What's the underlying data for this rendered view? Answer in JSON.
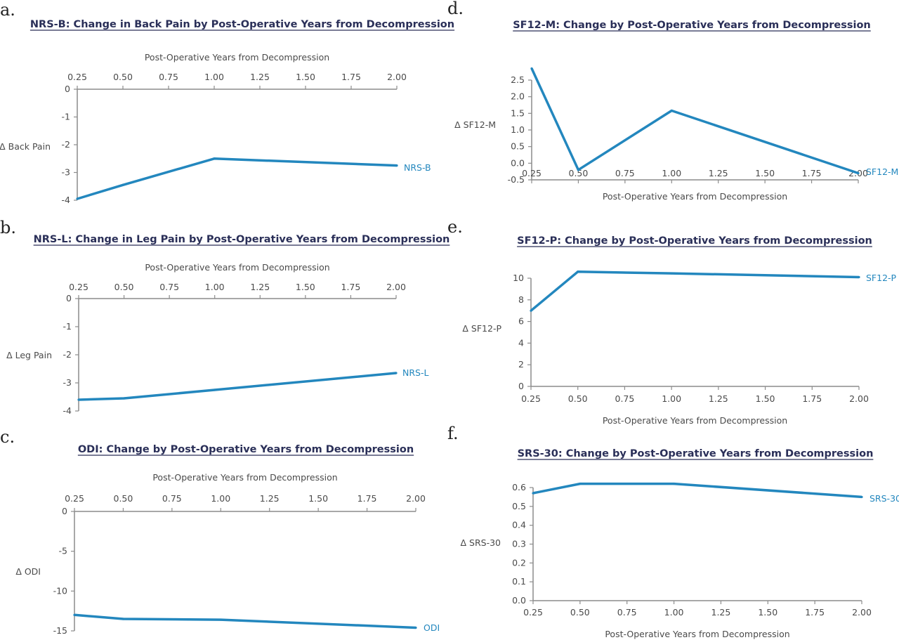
{
  "colors": {
    "series": "#2387be",
    "axis": "#8c8c8c",
    "title": "#2a2f58"
  },
  "chart_data": [
    {
      "panel": "a.",
      "type": "line",
      "title": "NRS-B: Change in Back Pain by Post-Operative Years from Decompression",
      "xlabel": "Post-Operative Years from Decompression",
      "ylabel": "Δ Back Pain",
      "x_axis_position": "top",
      "xticks": [
        "0.25",
        "0.50",
        "0.75",
        "1.00",
        "1.25",
        "1.50",
        "1.75",
        "2.00"
      ],
      "yticks": [
        "0",
        "-1",
        "-2",
        "-3",
        "-4"
      ],
      "xlim": [
        0.25,
        2.0
      ],
      "ylim": [
        -4,
        0
      ],
      "series": [
        {
          "name": "NRS-B",
          "x": [
            0.25,
            0.5,
            1.0,
            2.0
          ],
          "y": [
            -3.95,
            -3.45,
            -2.5,
            -2.75
          ]
        }
      ]
    },
    {
      "panel": "b.",
      "type": "line",
      "title": "NRS-L: Change in Leg Pain by Post-Operative Years from Decompression",
      "xlabel": "Post-Operative Years from Decompression",
      "ylabel": "Δ Leg Pain",
      "x_axis_position": "top",
      "xticks": [
        "0.25",
        "0.50",
        "0.75",
        "1.00",
        "1.25",
        "1.50",
        "1.75",
        "2.00"
      ],
      "yticks": [
        "0",
        "-1",
        "-2",
        "-3",
        "-4"
      ],
      "xlim": [
        0.25,
        2.0
      ],
      "ylim": [
        -4,
        0
      ],
      "series": [
        {
          "name": "NRS-L",
          "x": [
            0.25,
            0.5,
            1.0,
            2.0
          ],
          "y": [
            -3.6,
            -3.55,
            -3.25,
            -2.65
          ]
        }
      ]
    },
    {
      "panel": "c.",
      "type": "line",
      "title": "ODI: Change by Post-Operative Years from Decompression",
      "xlabel": "Post-Operative Years from Decompression",
      "ylabel": "Δ ODI",
      "x_axis_position": "top",
      "xticks": [
        "0.25",
        "0.50",
        "0.75",
        "1.00",
        "1.25",
        "1.50",
        "1.75",
        "2.00"
      ],
      "yticks": [
        "0",
        "-5",
        "-10",
        "-15"
      ],
      "xlim": [
        0.25,
        2.0
      ],
      "ylim": [
        -15,
        0
      ],
      "series": [
        {
          "name": "ODI",
          "x": [
            0.25,
            0.5,
            1.0,
            2.0
          ],
          "y": [
            -13.0,
            -13.5,
            -13.6,
            -14.6
          ]
        }
      ]
    },
    {
      "panel": "d.",
      "type": "line",
      "title": "SF12-M: Change by Post-Operative Years from Decompression",
      "xlabel": "Post-Operative Years from Decompression",
      "ylabel": "Δ SF12-M",
      "x_axis_position": "bottom",
      "xticks": [
        "0.25",
        "0.50",
        "0.75",
        "1.00",
        "1.25",
        "1.50",
        "1.75",
        "2.00"
      ],
      "yticks": [
        "2.5",
        "2.0",
        "1.5",
        "1.0",
        "0.5",
        "0.0",
        "-0.5"
      ],
      "xlim": [
        0.25,
        2.0
      ],
      "ylim": [
        -0.5,
        2.5
      ],
      "series": [
        {
          "name": "SF12-M",
          "x": [
            0.25,
            0.5,
            1.0,
            2.0
          ],
          "y": [
            2.85,
            -0.2,
            1.58,
            -0.3
          ]
        }
      ]
    },
    {
      "panel": "e.",
      "type": "line",
      "title": "SF12-P: Change by Post-Operative Years from Decompression",
      "xlabel": "Post-Operative Years from Decompression",
      "ylabel": "Δ SF12-P",
      "x_axis_position": "bottom",
      "xticks": [
        "0.25",
        "0.50",
        "0.75",
        "1.00",
        "1.25",
        "1.50",
        "1.75",
        "2.00"
      ],
      "yticks": [
        "10",
        "8",
        "6",
        "4",
        "2",
        "0"
      ],
      "xlim": [
        0.25,
        2.0
      ],
      "ylim": [
        0,
        10
      ],
      "series": [
        {
          "name": "SF12-P",
          "x": [
            0.25,
            0.5,
            1.0,
            2.0
          ],
          "y": [
            7.0,
            10.6,
            10.45,
            10.1
          ]
        }
      ]
    },
    {
      "panel": "f.",
      "type": "line",
      "title": "SRS-30: Change by Post-Operative Years from Decompression",
      "xlabel": "Post-Operative Years from Decompression",
      "ylabel": "Δ SRS-30",
      "x_axis_position": "bottom",
      "xticks": [
        "0.25",
        "0.50",
        "0.75",
        "1.00",
        "1.25",
        "1.50",
        "1.75",
        "2.00"
      ],
      "yticks": [
        "0.6",
        "0.5",
        "0.4",
        "0.3",
        "0.2",
        "0.1",
        "0.0"
      ],
      "xlim": [
        0.25,
        2.0
      ],
      "ylim": [
        0,
        0.6
      ],
      "series": [
        {
          "name": "SRS-30",
          "x": [
            0.25,
            0.5,
            1.0,
            2.0
          ],
          "y": [
            0.57,
            0.62,
            0.62,
            0.55
          ]
        }
      ]
    }
  ]
}
